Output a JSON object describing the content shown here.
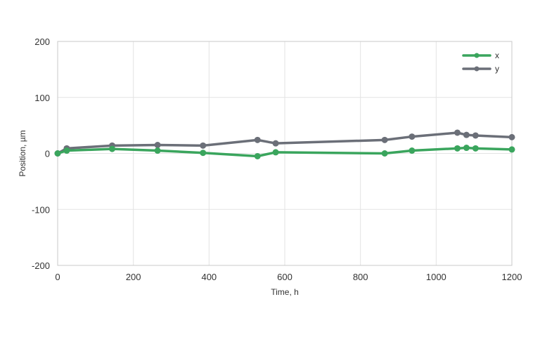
{
  "chart_data": {
    "type": "line",
    "xlabel": "Time, h",
    "ylabel": "Position, µm",
    "xlim": [
      0,
      1200
    ],
    "ylim": [
      -200,
      200
    ],
    "xticks": [
      0,
      200,
      400,
      600,
      800,
      1000,
      1200
    ],
    "yticks": [
      -200,
      -100,
      0,
      100,
      200
    ],
    "grid": true,
    "legend_position": "top-right",
    "series": [
      {
        "name": "x",
        "color": "#3aa55d",
        "points": [
          [
            0,
            0
          ],
          [
            24,
            5
          ],
          [
            144,
            8
          ],
          [
            264,
            5
          ],
          [
            384,
            1
          ],
          [
            528,
            -5
          ],
          [
            576,
            2
          ],
          [
            864,
            0
          ],
          [
            936,
            5
          ],
          [
            1056,
            9
          ],
          [
            1080,
            10
          ],
          [
            1104,
            9
          ],
          [
            1200,
            7
          ]
        ]
      },
      {
        "name": "y",
        "color": "#6b6f78",
        "points": [
          [
            0,
            0
          ],
          [
            24,
            9
          ],
          [
            144,
            14
          ],
          [
            264,
            15
          ],
          [
            384,
            14
          ],
          [
            528,
            24
          ],
          [
            576,
            18
          ],
          [
            864,
            24
          ],
          [
            936,
            30
          ],
          [
            1056,
            37
          ],
          [
            1080,
            33
          ],
          [
            1104,
            32
          ],
          [
            1200,
            29
          ]
        ]
      }
    ]
  }
}
